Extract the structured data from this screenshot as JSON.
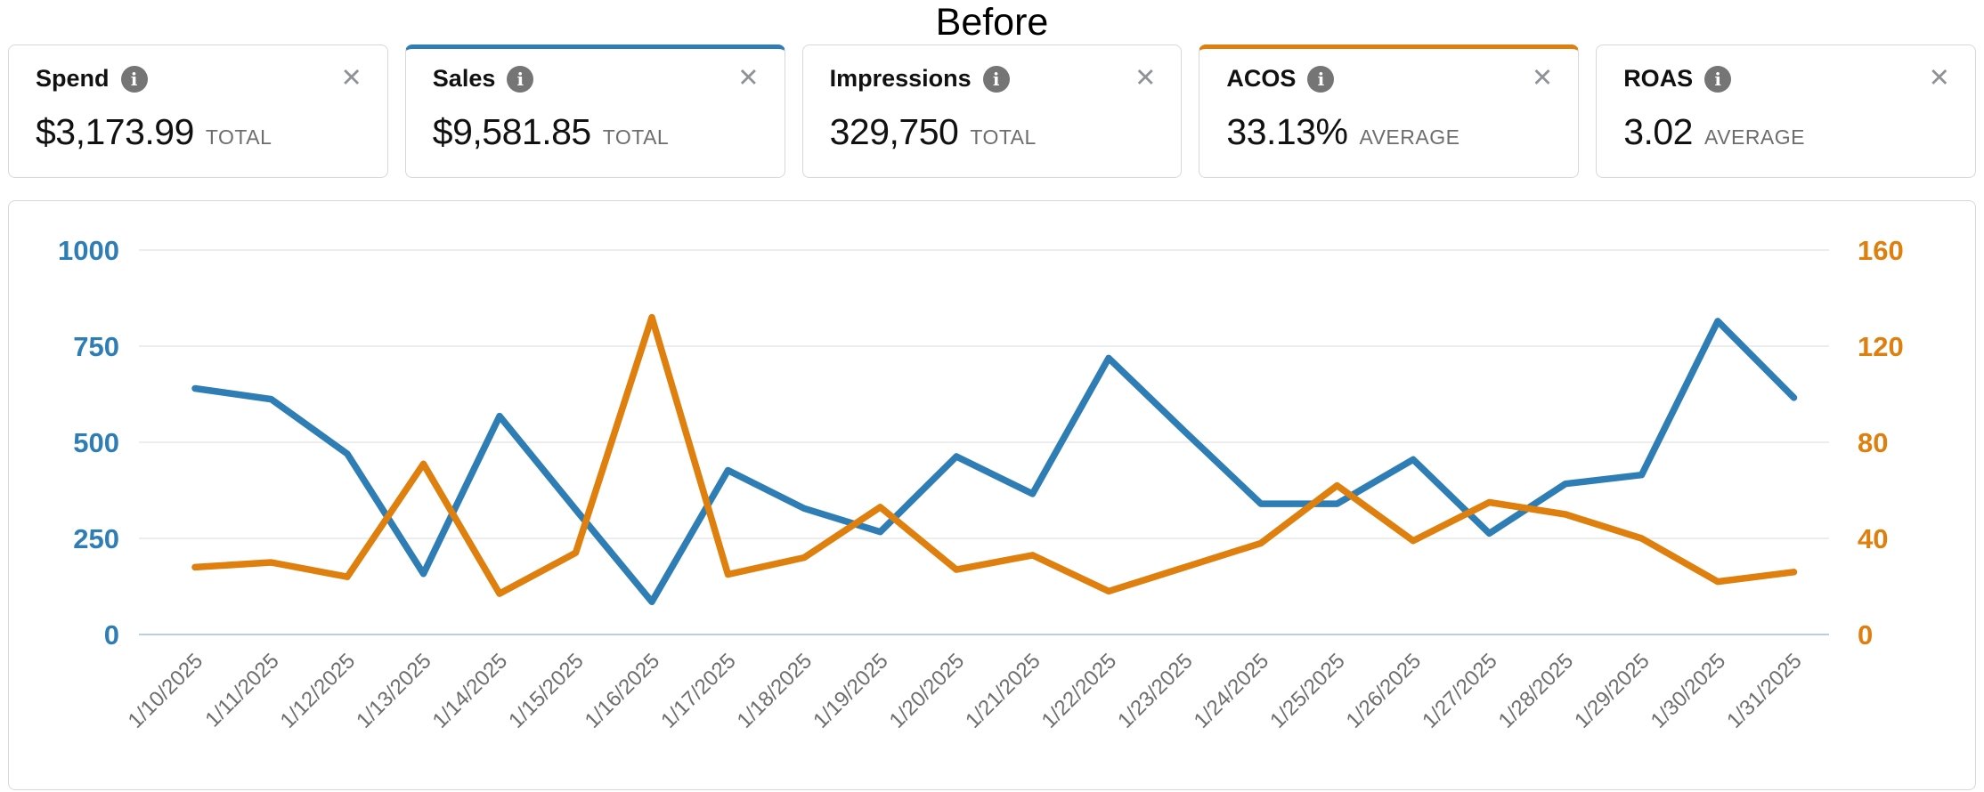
{
  "title": "Before",
  "icons": {
    "info": "i",
    "close": "✕"
  },
  "colors": {
    "blue": "#2e7eb5",
    "orange": "#de7f0e",
    "gridline": "#ededed",
    "zero_line": "#bccfdc",
    "date_label": "#6e6e6e",
    "card_border": "#d8d8d8"
  },
  "metric_cards": [
    {
      "label": "Spend",
      "value": "$3,173.99",
      "qualifier": "TOTAL",
      "selected": false,
      "accent": ""
    },
    {
      "label": "Sales",
      "value": "$9,581.85",
      "qualifier": "TOTAL",
      "selected": true,
      "accent": "#2e7eb5"
    },
    {
      "label": "Impressions",
      "value": "329,750",
      "qualifier": "TOTAL",
      "selected": false,
      "accent": ""
    },
    {
      "label": "ACOS",
      "value": "33.13%",
      "qualifier": "AVERAGE",
      "selected": true,
      "accent": "#de7f0e"
    },
    {
      "label": "ROAS",
      "value": "3.02",
      "qualifier": "AVERAGE",
      "selected": false,
      "accent": ""
    }
  ],
  "chart_data": {
    "type": "line",
    "x": [
      "1/10/2025",
      "1/11/2025",
      "1/12/2025",
      "1/13/2025",
      "1/14/2025",
      "1/15/2025",
      "1/16/2025",
      "1/17/2025",
      "1/18/2025",
      "1/19/2025",
      "1/20/2025",
      "1/21/2025",
      "1/22/2025",
      "1/23/2025",
      "1/24/2025",
      "1/25/2025",
      "1/26/2025",
      "1/27/2025",
      "1/28/2025",
      "1/29/2025",
      "1/30/2025",
      "1/31/2025"
    ],
    "series": [
      {
        "name": "Sales",
        "axis": "left",
        "color": "#2e7eb5",
        "values": [
          640,
          612,
          470,
          158,
          568,
          325,
          85,
          427,
          328,
          267,
          463,
          366,
          719,
          528,
          340,
          340,
          455,
          263,
          392,
          415,
          815,
          616
        ]
      },
      {
        "name": "ACOS",
        "axis": "right",
        "color": "#de7f0e",
        "values": [
          28,
          30,
          24,
          71,
          17,
          34,
          132,
          25,
          32,
          53,
          27,
          33,
          18,
          28,
          38,
          62,
          39,
          55,
          50,
          40,
          22,
          26
        ]
      }
    ],
    "left_axis": {
      "ticks": [
        0,
        250,
        500,
        750,
        1000
      ],
      "range": [
        0,
        1000
      ],
      "color": "#2e7eb5"
    },
    "right_axis": {
      "ticks": [
        0,
        40,
        80,
        120,
        160
      ],
      "range": [
        0,
        160
      ],
      "color": "#de7f0e"
    },
    "grid": true,
    "legend": "none"
  }
}
